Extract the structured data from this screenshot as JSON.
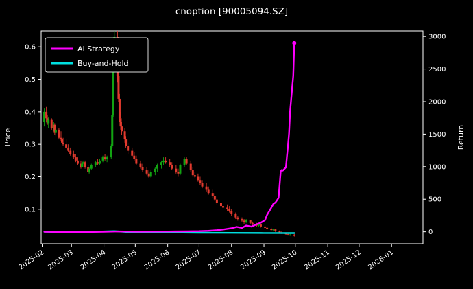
{
  "page": {
    "background": "#000000"
  },
  "chart_data": {
    "type": "candlestick+line",
    "title": "cnoption [90005094.SZ]",
    "background": "#000000",
    "text_color": "#ffffff",
    "axis_color": "#ffffff",
    "grid": false,
    "x_axis": {
      "range": [
        "2025-01-31",
        "2026-01-31"
      ],
      "ticks": [
        "2025-02",
        "2025-03",
        "2025-04",
        "2025-05",
        "2025-06",
        "2025-07",
        "2025-08",
        "2025-09",
        "2025-10",
        "2025-11",
        "2025-12",
        "2026-01"
      ],
      "tick_rotation_deg": 35
    },
    "left_axis": {
      "label": "Price",
      "ticks": [
        0.1,
        0.2,
        0.3,
        0.4,
        0.5,
        0.6
      ],
      "range": [
        -0.006,
        0.649
      ]
    },
    "right_axis": {
      "label": "Return",
      "ticks": [
        0,
        500,
        1000,
        1500,
        2000,
        2500,
        3000
      ],
      "range": [
        -183,
        3086
      ]
    },
    "legend": {
      "position": "upper-left",
      "entries": [
        {
          "label": "AI Strategy",
          "color": "#ff00ff"
        },
        {
          "label": "Buy-and-Hold",
          "color": "#00dfe0"
        }
      ]
    },
    "candles": {
      "up_color": "#12a312",
      "down_color": "#e23a2e",
      "format": [
        "date",
        "open",
        "high",
        "low",
        "close"
      ],
      "data": [
        [
          "2025-02-03",
          0.37,
          0.41,
          0.355,
          0.4
        ],
        [
          "2025-02-05",
          0.4,
          0.415,
          0.37,
          0.38
        ],
        [
          "2025-02-06",
          0.38,
          0.39,
          0.36,
          0.365
        ],
        [
          "2025-02-07",
          0.365,
          0.385,
          0.35,
          0.375
        ],
        [
          "2025-02-10",
          0.375,
          0.38,
          0.345,
          0.35
        ],
        [
          "2025-02-12",
          0.35,
          0.37,
          0.34,
          0.36
        ],
        [
          "2025-02-13",
          0.36,
          0.365,
          0.33,
          0.335
        ],
        [
          "2025-02-14",
          0.335,
          0.35,
          0.325,
          0.345
        ],
        [
          "2025-02-17",
          0.345,
          0.35,
          0.315,
          0.32
        ],
        [
          "2025-02-19",
          0.32,
          0.34,
          0.31,
          0.315
        ],
        [
          "2025-02-20",
          0.315,
          0.33,
          0.3,
          0.305
        ],
        [
          "2025-02-21",
          0.305,
          0.32,
          0.295,
          0.3
        ],
        [
          "2025-02-24",
          0.3,
          0.315,
          0.285,
          0.29
        ],
        [
          "2025-02-26",
          0.29,
          0.3,
          0.275,
          0.28
        ],
        [
          "2025-02-28",
          0.28,
          0.29,
          0.265,
          0.27
        ],
        [
          "2025-03-03",
          0.27,
          0.28,
          0.255,
          0.26
        ],
        [
          "2025-03-05",
          0.26,
          0.27,
          0.245,
          0.25
        ],
        [
          "2025-03-07",
          0.25,
          0.26,
          0.235,
          0.24
        ],
        [
          "2025-03-10",
          0.24,
          0.25,
          0.225,
          0.23
        ],
        [
          "2025-03-11",
          0.23,
          0.245,
          0.22,
          0.24
        ],
        [
          "2025-03-12",
          0.24,
          0.25,
          0.23,
          0.245
        ],
        [
          "2025-03-14",
          0.245,
          0.25,
          0.225,
          0.23
        ],
        [
          "2025-03-17",
          0.23,
          0.235,
          0.21,
          0.215
        ],
        [
          "2025-03-18",
          0.215,
          0.23,
          0.21,
          0.225
        ],
        [
          "2025-03-20",
          0.225,
          0.24,
          0.22,
          0.235
        ],
        [
          "2025-03-24",
          0.235,
          0.25,
          0.23,
          0.245
        ],
        [
          "2025-03-26",
          0.245,
          0.255,
          0.235,
          0.24
        ],
        [
          "2025-03-28",
          0.24,
          0.255,
          0.235,
          0.25
        ],
        [
          "2025-03-31",
          0.25,
          0.265,
          0.245,
          0.26
        ],
        [
          "2025-04-02",
          0.26,
          0.27,
          0.25,
          0.255
        ],
        [
          "2025-04-04",
          0.255,
          0.265,
          0.245,
          0.26
        ],
        [
          "2025-04-08",
          0.26,
          0.3,
          0.255,
          0.295
        ],
        [
          "2025-04-09",
          0.295,
          0.4,
          0.29,
          0.39
        ],
        [
          "2025-04-10",
          0.39,
          0.56,
          0.385,
          0.54
        ],
        [
          "2025-04-11",
          0.54,
          0.68,
          0.52,
          0.63
        ],
        [
          "2025-04-14",
          0.63,
          0.67,
          0.49,
          0.51
        ],
        [
          "2025-04-15",
          0.51,
          0.53,
          0.43,
          0.44
        ],
        [
          "2025-04-16",
          0.44,
          0.455,
          0.37,
          0.38
        ],
        [
          "2025-04-17",
          0.38,
          0.4,
          0.345,
          0.355
        ],
        [
          "2025-04-18",
          0.355,
          0.37,
          0.33,
          0.34
        ],
        [
          "2025-04-21",
          0.34,
          0.35,
          0.305,
          0.315
        ],
        [
          "2025-04-22",
          0.315,
          0.325,
          0.29,
          0.295
        ],
        [
          "2025-04-24",
          0.295,
          0.305,
          0.27,
          0.28
        ],
        [
          "2025-04-28",
          0.28,
          0.29,
          0.26,
          0.265
        ],
        [
          "2025-04-30",
          0.265,
          0.275,
          0.25,
          0.255
        ],
        [
          "2025-05-02",
          0.255,
          0.265,
          0.235,
          0.24
        ],
        [
          "2025-05-06",
          0.24,
          0.25,
          0.225,
          0.23
        ],
        [
          "2025-05-08",
          0.23,
          0.24,
          0.215,
          0.22
        ],
        [
          "2025-05-12",
          0.22,
          0.23,
          0.205,
          0.21
        ],
        [
          "2025-05-14",
          0.21,
          0.22,
          0.195,
          0.2
        ],
        [
          "2025-05-16",
          0.2,
          0.22,
          0.195,
          0.215
        ],
        [
          "2025-05-20",
          0.215,
          0.23,
          0.205,
          0.225
        ],
        [
          "2025-05-22",
          0.225,
          0.24,
          0.215,
          0.235
        ],
        [
          "2025-05-26",
          0.235,
          0.25,
          0.225,
          0.245
        ],
        [
          "2025-05-28",
          0.245,
          0.26,
          0.235,
          0.25
        ],
        [
          "2025-05-30",
          0.25,
          0.26,
          0.24,
          0.245
        ],
        [
          "2025-06-03",
          0.245,
          0.255,
          0.23,
          0.235
        ],
        [
          "2025-06-05",
          0.235,
          0.245,
          0.22,
          0.225
        ],
        [
          "2025-06-09",
          0.225,
          0.235,
          0.21,
          0.215
        ],
        [
          "2025-06-11",
          0.215,
          0.225,
          0.2,
          0.21
        ],
        [
          "2025-06-13",
          0.21,
          0.24,
          0.205,
          0.235
        ],
        [
          "2025-06-17",
          0.235,
          0.26,
          0.23,
          0.255
        ],
        [
          "2025-06-19",
          0.255,
          0.26,
          0.235,
          0.24
        ],
        [
          "2025-06-23",
          0.24,
          0.25,
          0.215,
          0.22
        ],
        [
          "2025-06-25",
          0.22,
          0.23,
          0.2,
          0.205
        ],
        [
          "2025-06-27",
          0.205,
          0.215,
          0.195,
          0.2
        ],
        [
          "2025-06-30",
          0.2,
          0.21,
          0.185,
          0.19
        ],
        [
          "2025-07-02",
          0.19,
          0.2,
          0.175,
          0.18
        ],
        [
          "2025-07-04",
          0.18,
          0.19,
          0.165,
          0.17
        ],
        [
          "2025-07-08",
          0.17,
          0.18,
          0.155,
          0.16
        ],
        [
          "2025-07-10",
          0.16,
          0.17,
          0.145,
          0.15
        ],
        [
          "2025-07-14",
          0.15,
          0.16,
          0.135,
          0.14
        ],
        [
          "2025-07-16",
          0.14,
          0.15,
          0.125,
          0.13
        ],
        [
          "2025-07-18",
          0.13,
          0.14,
          0.115,
          0.12
        ],
        [
          "2025-07-22",
          0.12,
          0.13,
          0.105,
          0.11
        ],
        [
          "2025-07-24",
          0.11,
          0.12,
          0.1,
          0.105
        ],
        [
          "2025-07-28",
          0.105,
          0.115,
          0.095,
          0.1
        ],
        [
          "2025-07-30",
          0.1,
          0.11,
          0.09,
          0.095
        ],
        [
          "2025-08-01",
          0.095,
          0.1,
          0.08,
          0.085
        ],
        [
          "2025-08-05",
          0.085,
          0.09,
          0.07,
          0.075
        ],
        [
          "2025-08-07",
          0.075,
          0.08,
          0.065,
          0.07
        ],
        [
          "2025-08-11",
          0.07,
          0.075,
          0.06,
          0.065
        ],
        [
          "2025-08-13",
          0.065,
          0.07,
          0.055,
          0.06
        ],
        [
          "2025-08-15",
          0.06,
          0.07,
          0.057,
          0.066
        ],
        [
          "2025-08-19",
          0.066,
          0.068,
          0.055,
          0.058
        ],
        [
          "2025-08-21",
          0.058,
          0.062,
          0.05,
          0.053
        ],
        [
          "2025-08-25",
          0.053,
          0.058,
          0.047,
          0.05
        ],
        [
          "2025-08-27",
          0.05,
          0.056,
          0.046,
          0.053
        ],
        [
          "2025-08-29",
          0.053,
          0.055,
          0.044,
          0.047
        ],
        [
          "2025-09-02",
          0.047,
          0.05,
          0.04,
          0.043
        ],
        [
          "2025-09-04",
          0.043,
          0.046,
          0.037,
          0.04
        ],
        [
          "2025-09-08",
          0.04,
          0.043,
          0.034,
          0.036
        ],
        [
          "2025-09-10",
          0.036,
          0.04,
          0.032,
          0.038
        ],
        [
          "2025-09-12",
          0.038,
          0.04,
          0.03,
          0.032
        ],
        [
          "2025-09-16",
          0.032,
          0.035,
          0.027,
          0.029
        ],
        [
          "2025-09-18",
          0.029,
          0.032,
          0.024,
          0.026
        ],
        [
          "2025-09-22",
          0.026,
          0.028,
          0.021,
          0.023
        ],
        [
          "2025-09-24",
          0.023,
          0.026,
          0.019,
          0.021
        ],
        [
          "2025-09-26",
          0.021,
          0.024,
          0.018,
          0.022
        ],
        [
          "2025-09-30",
          0.022,
          0.024,
          0.016,
          0.018
        ]
      ]
    },
    "series": [
      {
        "name": "AI Strategy",
        "axis": "right",
        "color": "#ff00ff",
        "points": [
          [
            "2025-02-03",
            0
          ],
          [
            "2025-02-20",
            -3
          ],
          [
            "2025-03-10",
            -5
          ],
          [
            "2025-04-01",
            0
          ],
          [
            "2025-04-15",
            6
          ],
          [
            "2025-05-02",
            3
          ],
          [
            "2025-06-02",
            5
          ],
          [
            "2025-06-20",
            8
          ],
          [
            "2025-07-01",
            10
          ],
          [
            "2025-07-10",
            15
          ],
          [
            "2025-07-18",
            25
          ],
          [
            "2025-07-24",
            35
          ],
          [
            "2025-08-01",
            55
          ],
          [
            "2025-08-06",
            75
          ],
          [
            "2025-08-11",
            60
          ],
          [
            "2025-08-15",
            95
          ],
          [
            "2025-08-20",
            80
          ],
          [
            "2025-08-25",
            115
          ],
          [
            "2025-08-29",
            140
          ],
          [
            "2025-09-02",
            180
          ],
          [
            "2025-09-04",
            260
          ],
          [
            "2025-09-08",
            370
          ],
          [
            "2025-09-10",
            430
          ],
          [
            "2025-09-12",
            450
          ],
          [
            "2025-09-15",
            520
          ],
          [
            "2025-09-16",
            720
          ],
          [
            "2025-09-17",
            930
          ],
          [
            "2025-09-18",
            950
          ],
          [
            "2025-09-19",
            940
          ],
          [
            "2025-09-22",
            990
          ],
          [
            "2025-09-23",
            1160
          ],
          [
            "2025-09-24",
            1320
          ],
          [
            "2025-09-25",
            1520
          ],
          [
            "2025-09-26",
            1850
          ],
          [
            "2025-09-29",
            2400
          ],
          [
            "2025-09-30",
            2900
          ]
        ]
      },
      {
        "name": "Buy-and-Hold",
        "axis": "right",
        "color": "#00dfe0",
        "points": [
          [
            "2025-02-03",
            0
          ],
          [
            "2025-03-03",
            -8
          ],
          [
            "2025-04-11",
            10
          ],
          [
            "2025-05-02",
            -12
          ],
          [
            "2025-06-02",
            -10
          ],
          [
            "2025-07-01",
            -14
          ],
          [
            "2025-08-01",
            -16
          ],
          [
            "2025-09-01",
            -18
          ],
          [
            "2025-09-30",
            -20
          ]
        ]
      }
    ]
  }
}
